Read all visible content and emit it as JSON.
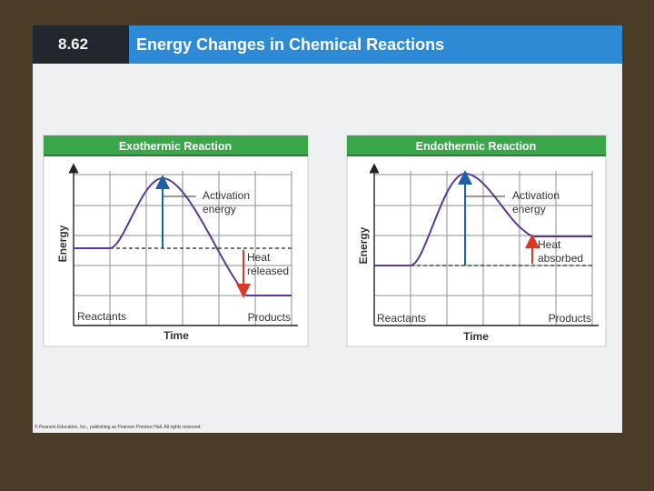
{
  "header": {
    "number": "8.62",
    "title": "Energy Changes in Chemical Reactions"
  },
  "footer": {
    "copyright": "© Pearson Education, Inc., publishing as Pearson Prentice Hall. All rights reserved."
  },
  "colors": {
    "panel_header": "#3aa64a",
    "curve": "#5b3a96",
    "activation_arrow": "#1f5fa8",
    "heat_arrow": "#d83a2a",
    "grid": "#8a9096",
    "header_blue": "#2f8ad6"
  },
  "diagrams": {
    "exo": {
      "title": "Exothermic Reaction",
      "y_axis": "Energy",
      "x_axis": "Time",
      "start_label": "Reactants",
      "end_label": "Products",
      "activation_line1": "Activation",
      "activation_line2": "energy",
      "heat_line1": "Heat",
      "heat_line2": "released"
    },
    "endo": {
      "title": "Endothermic Reaction",
      "y_axis": "Energy",
      "x_axis": "Time",
      "start_label": "Reactants",
      "end_label": "Products",
      "activation_line1": "Activation",
      "activation_line2": "energy",
      "heat_line1": "Heat",
      "heat_line2": "absorbed"
    }
  }
}
